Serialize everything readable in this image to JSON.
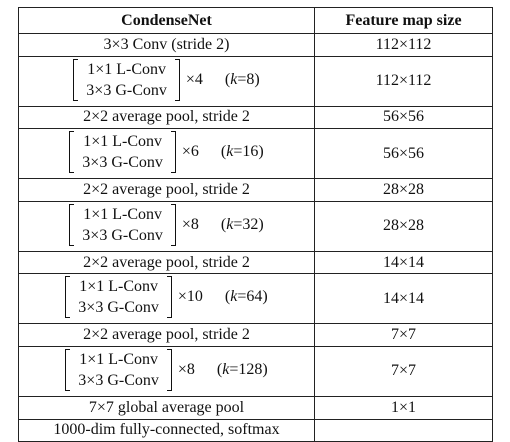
{
  "headers": {
    "col1": "CondenseNet",
    "col2": "Feature map size"
  },
  "rows": [
    {
      "kind": "single",
      "label": "3×3 Conv (stride 2)",
      "size": "112×112"
    },
    {
      "kind": "block",
      "op1": "1×1 L-Conv",
      "op2": "3×3 G-Conv",
      "mult": "×4",
      "k_prefix": "(",
      "k_var": "k",
      "k_value": "=8)",
      "size": "112×112"
    },
    {
      "kind": "single",
      "label": "2×2 average pool, stride 2",
      "size": "56×56"
    },
    {
      "kind": "block",
      "op1": "1×1 L-Conv",
      "op2": "3×3 G-Conv",
      "mult": "×6",
      "k_prefix": "(",
      "k_var": "k",
      "k_value": "=16)",
      "size": "56×56"
    },
    {
      "kind": "single",
      "label": "2×2 average pool, stride 2",
      "size": "28×28"
    },
    {
      "kind": "block",
      "op1": "1×1 L-Conv",
      "op2": "3×3 G-Conv",
      "mult": "×8",
      "k_prefix": "(",
      "k_var": "k",
      "k_value": "=32)",
      "size": "28×28"
    },
    {
      "kind": "single",
      "label": "2×2 average pool, stride 2",
      "size": "14×14"
    },
    {
      "kind": "block",
      "op1": "1×1 L-Conv",
      "op2": "3×3 G-Conv",
      "mult": "×10",
      "k_prefix": "(",
      "k_var": "k",
      "k_value": "=64)",
      "size": "14×14"
    },
    {
      "kind": "single",
      "label": "2×2 average pool, stride 2",
      "size": "7×7"
    },
    {
      "kind": "block",
      "op1": "1×1 L-Conv",
      "op2": "3×3 G-Conv",
      "mult": "×8",
      "k_prefix": "(",
      "k_var": "k",
      "k_value": "=128)",
      "size": "7×7"
    },
    {
      "kind": "single",
      "label": "7×7 global average pool",
      "size": "1×1"
    },
    {
      "kind": "single",
      "label": "1000-dim fully-connected, softmax",
      "size": ""
    }
  ]
}
